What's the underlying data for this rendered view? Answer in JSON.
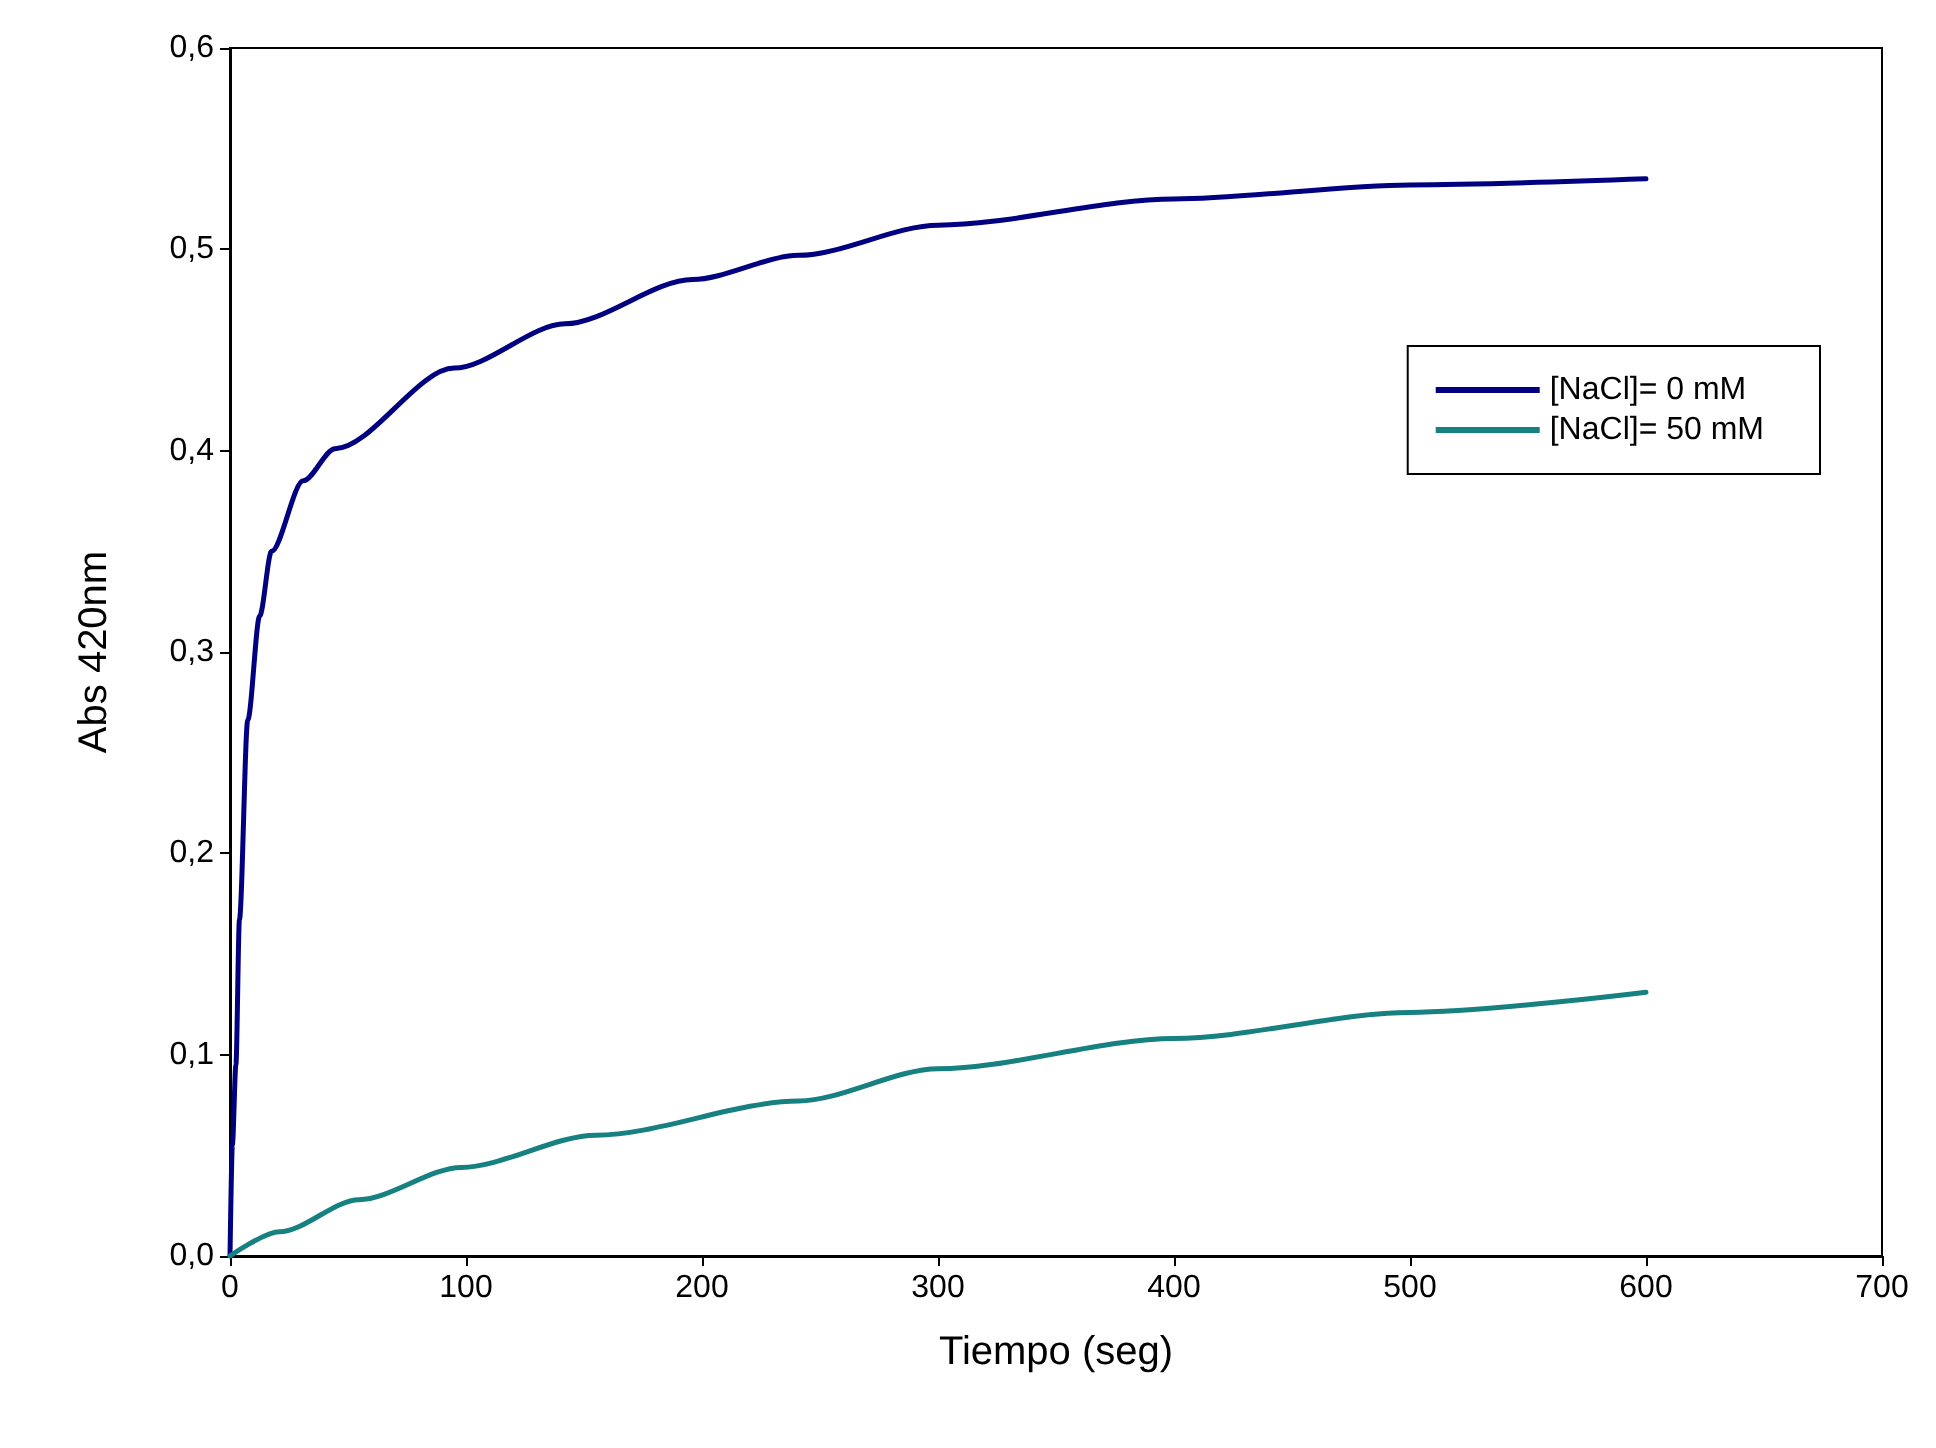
{
  "chart_data": {
    "type": "line",
    "xlabel": "Tiempo (seg)",
    "ylabel": "Abs 420nm",
    "xlim": [
      0,
      700
    ],
    "xticks": [
      0,
      100,
      200,
      300,
      400,
      500,
      600,
      700
    ],
    "ylim": [
      0,
      0.6
    ],
    "yticks": [
      {
        "value": 0,
        "label": "0,0"
      },
      {
        "value": 0.1,
        "label": "0,1"
      },
      {
        "value": 0.2,
        "label": "0,2"
      },
      {
        "value": 0.3,
        "label": "0,3"
      },
      {
        "value": 0.4,
        "label": "0,4"
      },
      {
        "value": 0.5,
        "label": "0,5"
      },
      {
        "value": 0.6,
        "label": "0,6"
      }
    ],
    "grid": false,
    "legend": "top right",
    "marker": "none",
    "line_style": "solid",
    "series": [
      {
        "name": "[NaCl]= 0 mM",
        "color": "#000080",
        "x": [
          0,
          1,
          2.5,
          4,
          7.5,
          12.6,
          17.6,
          31,
          44.5,
          95,
          142,
          196,
          241,
          300,
          400,
          500,
          600
        ],
        "values": [
          0,
          0.055,
          0.095,
          0.167,
          0.266,
          0.318,
          0.35,
          0.385,
          0.401,
          0.441,
          0.463,
          0.485,
          0.497,
          0.512,
          0.525,
          0.532,
          0.535
        ]
      },
      {
        "name": "[NaCl]= 50 mM",
        "color": "#178080",
        "x": [
          0,
          21,
          54.6,
          98,
          155,
          241,
          300,
          400,
          500,
          600
        ],
        "values": [
          0,
          0.012,
          0.028,
          0.044,
          0.06,
          0.077,
          0.093,
          0.108,
          0.121,
          0.131
        ]
      }
    ]
  }
}
